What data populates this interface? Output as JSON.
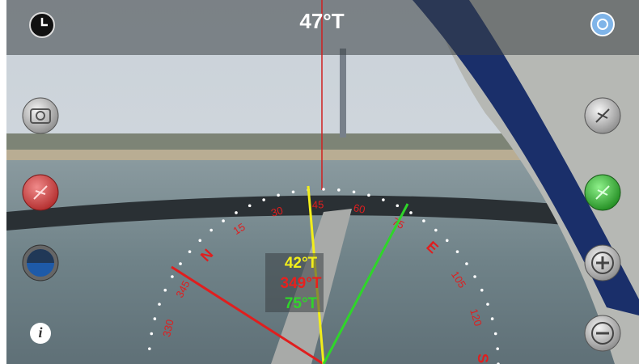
{
  "header": {
    "heading": "47°T"
  },
  "readouts": [
    {
      "text": "42°T",
      "color": "#f2ee1a"
    },
    {
      "text": "349°T",
      "color": "#e8201e"
    },
    {
      "text": "75°T",
      "color": "#2fd52a"
    }
  ],
  "dial_labels": [
    "330",
    "345",
    "N",
    "15",
    "30",
    "45",
    "60",
    "75",
    "E",
    "105",
    "120",
    "S"
  ],
  "info_button": "i"
}
